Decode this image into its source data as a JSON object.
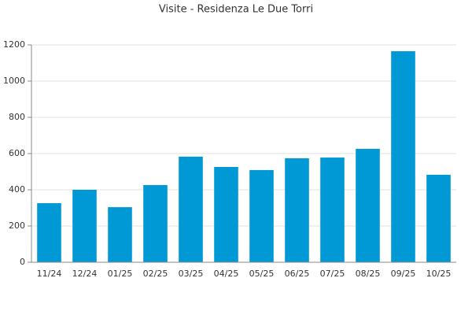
{
  "chart_data": {
    "type": "bar",
    "title": "Visite - Residenza Le Due Torri",
    "categories": [
      "11/24",
      "12/24",
      "01/25",
      "02/25",
      "03/25",
      "04/25",
      "05/25",
      "06/25",
      "07/25",
      "08/25",
      "09/25",
      "10/25"
    ],
    "values": [
      326,
      400,
      304,
      426,
      583,
      526,
      509,
      574,
      578,
      626,
      1165,
      483
    ],
    "color": "#0099d6",
    "ylim": [
      0,
      1200
    ],
    "yticks": [
      0,
      200,
      400,
      600,
      800,
      1000,
      1200
    ],
    "grid": true
  }
}
